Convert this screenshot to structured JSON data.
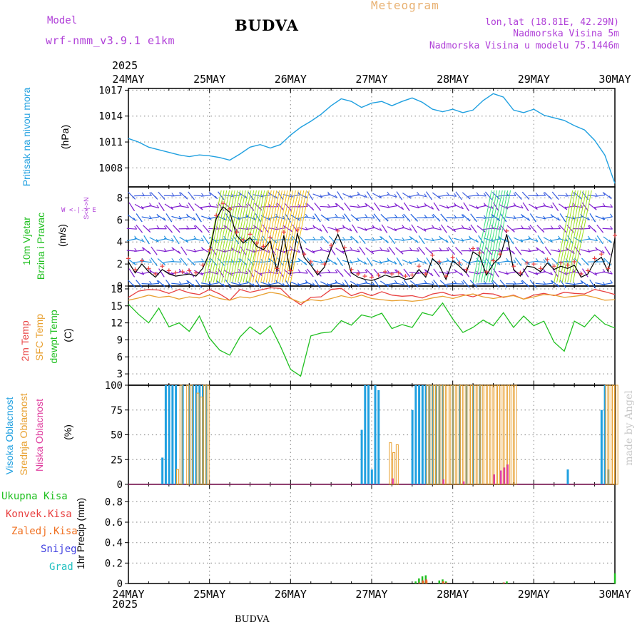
{
  "header": {
    "model_label": "Model",
    "model_name": "wrf-nmm_v3.9.1 e1km",
    "title": "BUDVA",
    "meteogram_label": "Meteogram",
    "lonlat": "lon,lat (18.81E, 42.29N)",
    "elevation": "Nadmorska Visina 5m",
    "model_elevation": "Nadmorska Visina u modelu 75.1446m",
    "footer_station": "BUDVA",
    "credit": "made by Angel",
    "year": "2025"
  },
  "colors": {
    "purple": "#b040d8",
    "title": "#000000",
    "meteogram": "#e8b070",
    "pressure": "#20a0e0",
    "t2m": "#e84040",
    "sfc": "#e8a030",
    "dew": "#20c020",
    "high_cloud": "#20a0e0",
    "mid_cloud": "#e8a030",
    "low_cloud": "#e040a0",
    "rain_total": "#20c020",
    "rain_conv": "#e84040",
    "rain_frz": "#f07020",
    "snow": "#4040e0",
    "graupel": "#20c0c0",
    "credit": "#c8c8c8"
  },
  "x_axis": {
    "labels": [
      "24MAY",
      "25MAY",
      "26MAY",
      "27MAY",
      "28MAY",
      "29MAY",
      "30MAY"
    ],
    "range_hours": [
      0,
      144
    ]
  },
  "side_labels": {
    "pressure_name": "Pritisak na nivou mora",
    "pressure_unit": "(hPa)",
    "wind_name_1": "10m Vjetar",
    "wind_name_2": "Brzina i Pravac",
    "wind_unit": "(m/s)",
    "compass": "W <-|-> E",
    "compass_ns": "S<-|->N",
    "temp_t2m": "2m Temp",
    "temp_sfc": "SFC Temp",
    "temp_dew": "dewpt Temp",
    "temp_unit": "(C)",
    "cloud_high": "Visoka Oblacnost",
    "cloud_mid": "Srednja Oblacnost",
    "cloud_low": "Niska Oblacnost",
    "cloud_unit": "(%)",
    "precip_total": "Ukupna Kisa",
    "precip_conv": "Konvek.Kisa",
    "precip_frz": "Zaledj.Kisa",
    "precip_snow": "Snijeg",
    "precip_graupel": "Grad",
    "precip_unit": "1hr Precip (mm)"
  },
  "chart_data": [
    {
      "type": "line",
      "panel": "pressure",
      "ylabel": "(hPa)",
      "yticks": [
        "1017",
        "1014",
        "1011",
        "1008"
      ],
      "ylim": [
        1005.8,
        1017.2
      ],
      "x": [
        0,
        3,
        6,
        9,
        12,
        15,
        18,
        21,
        24,
        27,
        30,
        33,
        36,
        39,
        42,
        45,
        48,
        51,
        54,
        57,
        60,
        63,
        66,
        69,
        72,
        75,
        78,
        81,
        84,
        87,
        90,
        93,
        96,
        99,
        102,
        105,
        108,
        111,
        114,
        117,
        120,
        123,
        126,
        129,
        132,
        135,
        138,
        141,
        144
      ],
      "series": [
        {
          "values": [
            1011.4,
            1011.0,
            1010.4,
            1010.1,
            1009.8,
            1009.5,
            1009.3,
            1009.5,
            1009.4,
            1009.2,
            1008.9,
            1009.6,
            1010.4,
            1010.7,
            1010.3,
            1010.7,
            1011.8,
            1012.7,
            1013.4,
            1014.2,
            1015.2,
            1016.0,
            1015.7,
            1015.0,
            1015.5,
            1015.7,
            1015.2,
            1015.7,
            1016.1,
            1015.6,
            1014.8,
            1014.5,
            1014.8,
            1014.4,
            1014.7,
            1015.8,
            1016.6,
            1016.2,
            1014.7,
            1014.4,
            1014.8,
            1014.1,
            1013.8,
            1013.5,
            1012.9,
            1012.4,
            1011.2,
            1009.5,
            1006.2
          ]
        }
      ]
    },
    {
      "type": "line",
      "panel": "wind",
      "ylabel": "(m/s)",
      "yticks": [
        "8",
        "6",
        "4",
        "2",
        "0"
      ],
      "ylim": [
        0,
        9
      ],
      "x": [
        0,
        2,
        4,
        6,
        8,
        10,
        12,
        14,
        16,
        18,
        20,
        22,
        24,
        26,
        28,
        30,
        32,
        34,
        36,
        38,
        40,
        42,
        44,
        46,
        48,
        50,
        52,
        54,
        56,
        58,
        60,
        62,
        64,
        66,
        68,
        70,
        72,
        74,
        76,
        78,
        80,
        82,
        84,
        86,
        88,
        90,
        92,
        94,
        96,
        98,
        100,
        102,
        104,
        106,
        108,
        110,
        112,
        114,
        116,
        118,
        120,
        122,
        124,
        126,
        128,
        130,
        132,
        134,
        136,
        138,
        140,
        142,
        144
      ],
      "series": [
        {
          "values": [
            2.2,
            1.2,
            2.0,
            1.3,
            0.8,
            1.5,
            1.1,
            0.9,
            1.0,
            1.1,
            0.9,
            1.6,
            3.0,
            6.1,
            7.2,
            6.7,
            4.6,
            3.9,
            4.4,
            3.6,
            3.3,
            4.1,
            1.3,
            4.6,
            1.1,
            4.8,
            2.6,
            1.9,
            1.0,
            1.7,
            3.4,
            4.7,
            3.2,
            1.2,
            0.8,
            0.6,
            0.5,
            0.7,
            1.0,
            0.8,
            0.9,
            0.6,
            0.7,
            1.5,
            0.8,
            2.5,
            1.9,
            0.6,
            2.3,
            1.8,
            1.2,
            3.1,
            2.7,
            1.0,
            2.0,
            2.6,
            4.7,
            1.5,
            0.9,
            1.8,
            1.7,
            1.3,
            2.1,
            1.5,
            1.8,
            1.6,
            1.9,
            0.8,
            1.1,
            2.2,
            2.6,
            1.3,
            4.3
          ]
        }
      ]
    },
    {
      "type": "line",
      "panel": "temperature",
      "ylabel": "(C)",
      "yticks": [
        "18",
        "15",
        "12",
        "9",
        "6",
        "3"
      ],
      "ylim": [
        1,
        18.5
      ],
      "x": [
        0,
        3,
        6,
        9,
        12,
        15,
        18,
        21,
        24,
        27,
        30,
        33,
        36,
        39,
        42,
        45,
        48,
        51,
        54,
        57,
        60,
        63,
        66,
        69,
        72,
        75,
        78,
        81,
        84,
        87,
        90,
        93,
        96,
        99,
        102,
        105,
        108,
        111,
        114,
        117,
        120,
        123,
        126,
        129,
        132,
        135,
        138,
        141,
        144
      ],
      "series": [
        {
          "name": "2m Temp",
          "values": [
            16.5,
            17.6,
            17.9,
            17.8,
            17.2,
            17.9,
            17.3,
            17.0,
            17.9,
            17.1,
            16.0,
            17.9,
            17.4,
            17.8,
            18.2,
            18.1,
            16.4,
            15.2,
            16.5,
            16.6,
            17.9,
            18.1,
            16.8,
            17.4,
            16.8,
            17.5,
            16.9,
            16.7,
            16.8,
            16.4,
            17.1,
            17.4,
            16.8,
            17.0,
            16.6,
            17.2,
            17.1,
            16.5,
            16.9,
            16.2,
            16.9,
            17.2,
            16.8,
            17.4,
            17.2,
            17.1,
            17.9,
            17.5,
            17.0
          ]
        },
        {
          "name": "SFC Temp",
          "values": [
            16.0,
            16.4,
            16.9,
            16.5,
            16.7,
            16.2,
            16.6,
            16.4,
            16.9,
            16.3,
            16.0,
            16.6,
            16.4,
            16.9,
            17.4,
            17.1,
            16.3,
            15.6,
            16.1,
            15.9,
            16.3,
            16.8,
            16.4,
            16.9,
            16.3,
            16.1,
            15.9,
            16.0,
            15.8,
            16.0,
            16.4,
            16.7,
            16.3,
            16.8,
            17.1,
            16.6,
            16.3,
            16.6,
            16.8,
            16.2,
            16.6,
            17.0,
            16.9,
            16.5,
            16.7,
            16.9,
            16.5,
            16.0,
            16.1
          ]
        },
        {
          "name": "dewpt Temp",
          "values": [
            15.3,
            13.5,
            12.0,
            14.6,
            11.3,
            12.0,
            10.5,
            13.2,
            9.3,
            7.2,
            6.3,
            9.5,
            11.3,
            10.0,
            11.5,
            7.9,
            3.8,
            2.6,
            9.7,
            10.2,
            10.4,
            12.4,
            11.6,
            13.4,
            13.0,
            13.7,
            11.0,
            11.7,
            11.2,
            13.8,
            13.3,
            15.5,
            12.7,
            10.3,
            11.2,
            12.5,
            11.5,
            13.8,
            11.2,
            13.2,
            11.5,
            12.3,
            8.6,
            7.0,
            12.3,
            11.3,
            13.4,
            11.8,
            11.1
          ]
        }
      ]
    },
    {
      "type": "bar",
      "panel": "cloud",
      "ylabel": "(%)",
      "yticks": [
        "100",
        "75",
        "50",
        "25",
        "0"
      ],
      "ylim": [
        0,
        100
      ],
      "series": [
        {
          "name": "Visoka Oblacnost",
          "x": [
            10,
            11,
            12,
            13,
            14,
            16,
            18,
            19,
            20,
            21,
            22,
            23,
            69,
            70,
            71,
            72,
            73,
            74,
            84,
            85,
            86,
            87,
            88,
            89,
            90,
            91,
            92,
            93,
            96,
            98,
            100,
            102,
            104,
            130,
            140,
            141,
            142
          ],
          "values": [
            27,
            100,
            100,
            100,
            100,
            100,
            100,
            100,
            100,
            100,
            100,
            100,
            55,
            100,
            100,
            15,
            100,
            95,
            75,
            100,
            100,
            100,
            100,
            100,
            100,
            100,
            100,
            100,
            100,
            100,
            100,
            100,
            100,
            15,
            75,
            100,
            15
          ]
        },
        {
          "name": "Srednja Oblacnost",
          "x": [
            14,
            15,
            17,
            18,
            20,
            21,
            22,
            23,
            77,
            78,
            79,
            88,
            89,
            90,
            91,
            92,
            93,
            94,
            95,
            96,
            97,
            98,
            99,
            100,
            101,
            102,
            103,
            104,
            105,
            106,
            107,
            108,
            109,
            110,
            111,
            112,
            113,
            114,
            141,
            142,
            143,
            144
          ],
          "values": [
            15,
            100,
            100,
            100,
            92,
            88,
            100,
            100,
            42,
            32,
            40,
            100,
            100,
            100,
            100,
            100,
            100,
            100,
            100,
            100,
            100,
            100,
            100,
            100,
            100,
            100,
            100,
            100,
            100,
            100,
            100,
            100,
            100,
            100,
            100,
            100,
            100,
            100,
            100,
            100,
            100,
            100
          ]
        },
        {
          "name": "Niska Oblacnost",
          "x": [
            78,
            93,
            99,
            108,
            110,
            111,
            112
          ],
          "values": [
            6,
            5,
            3,
            10,
            14,
            17,
            20
          ]
        }
      ]
    },
    {
      "type": "bar",
      "panel": "precipitation",
      "ylabel": "1hr Precip (mm)",
      "yticks": [
        "0.8",
        "0.6",
        "0.4",
        "0.2",
        "0"
      ],
      "ylim": [
        0,
        0.97
      ],
      "series": [
        {
          "name": "Ukupna Kisa",
          "x": [
            85,
            86,
            87,
            88,
            92,
            93,
            94,
            111,
            112,
            144
          ],
          "values": [
            0.02,
            0.05,
            0.07,
            0.08,
            0.03,
            0.04,
            0.02,
            0.01,
            0.02,
            0.1
          ]
        },
        {
          "name": "Konvek.Kisa",
          "x": [
            86,
            87,
            88,
            93,
            94,
            111
          ],
          "values": [
            0.01,
            0.03,
            0.04,
            0.02,
            0.01,
            0.01
          ]
        },
        {
          "name": "Zaledj.Kisa",
          "x": [
            87,
            88,
            93
          ],
          "values": [
            0.02,
            0.03,
            0.02
          ]
        },
        {
          "name": "Snijeg",
          "x": [],
          "values": []
        },
        {
          "name": "Grad",
          "x": [],
          "values": []
        }
      ]
    }
  ]
}
